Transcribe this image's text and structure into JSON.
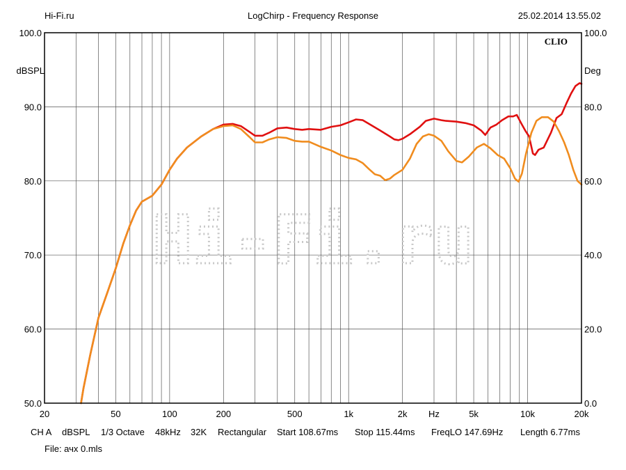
{
  "header": {
    "site": "Hi-Fi.ru",
    "title": "LogChirp - Frequency Response",
    "datetime": "25.02.2014 13.55.02"
  },
  "watermark": "Hi-Fi.ru",
  "chart_data": {
    "type": "line",
    "title": "LogChirp - Frequency Response",
    "brand": "CLIO",
    "xlabel": "Hz",
    "ylabel_left": "dBSPL",
    "ylabel_right": "Deg",
    "x_scale": "log",
    "xlim": [
      20,
      20000
    ],
    "ylim_left": [
      50,
      100
    ],
    "ylim_right": [
      0,
      100
    ],
    "grid": true,
    "x_ticks": [
      {
        "value": 20,
        "label": "20"
      },
      {
        "value": 50,
        "label": "50"
      },
      {
        "value": 100,
        "label": "100"
      },
      {
        "value": 200,
        "label": "200"
      },
      {
        "value": 500,
        "label": "500"
      },
      {
        "value": 1000,
        "label": "1k"
      },
      {
        "value": 2000,
        "label": "2k"
      },
      {
        "value": 3000,
        "label": "Hz"
      },
      {
        "value": 5000,
        "label": "5k"
      },
      {
        "value": 10000,
        "label": "10k"
      },
      {
        "value": 20000,
        "label": "20k"
      }
    ],
    "y_ticks_left": [
      {
        "value": 50,
        "label": "50.0"
      },
      {
        "value": 60,
        "label": "60.0"
      },
      {
        "value": 70,
        "label": "70.0"
      },
      {
        "value": 80,
        "label": "80.0"
      },
      {
        "value": 90,
        "label": "90.0"
      },
      {
        "value": 100,
        "label": "100.0"
      }
    ],
    "y_ticks_right": [
      {
        "value": 0,
        "label": "0.0"
      },
      {
        "value": 20,
        "label": "20.0"
      },
      {
        "value": 40,
        "label": "40.0"
      },
      {
        "value": 60,
        "label": "60.0"
      },
      {
        "value": 80,
        "label": "80.0"
      },
      {
        "value": 100,
        "label": "100.0"
      }
    ],
    "series": [
      {
        "color": "#e01010",
        "points": [
          [
            32,
            50
          ],
          [
            33,
            52
          ],
          [
            36,
            56.5
          ],
          [
            40,
            61.5
          ],
          [
            45,
            65
          ],
          [
            50,
            68.2
          ],
          [
            55,
            71.5
          ],
          [
            60,
            74
          ],
          [
            65,
            76
          ],
          [
            70,
            77.2
          ],
          [
            80,
            78
          ],
          [
            90,
            79.5
          ],
          [
            100,
            81.5
          ],
          [
            110,
            83
          ],
          [
            125,
            84.5
          ],
          [
            150,
            86
          ],
          [
            175,
            87
          ],
          [
            200,
            87.6
          ],
          [
            225,
            87.7
          ],
          [
            250,
            87.4
          ],
          [
            280,
            86.6
          ],
          [
            300,
            86.1
          ],
          [
            330,
            86.1
          ],
          [
            360,
            86.5
          ],
          [
            400,
            87.1
          ],
          [
            450,
            87.2
          ],
          [
            500,
            87
          ],
          [
            550,
            86.9
          ],
          [
            600,
            87
          ],
          [
            700,
            86.9
          ],
          [
            800,
            87.3
          ],
          [
            900,
            87.5
          ],
          [
            1000,
            87.9
          ],
          [
            1100,
            88.3
          ],
          [
            1200,
            88.2
          ],
          [
            1300,
            87.7
          ],
          [
            1500,
            86.8
          ],
          [
            1700,
            86
          ],
          [
            1800,
            85.6
          ],
          [
            1900,
            85.5
          ],
          [
            2000,
            85.7
          ],
          [
            2200,
            86.3
          ],
          [
            2500,
            87.3
          ],
          [
            2700,
            88.1
          ],
          [
            3000,
            88.4
          ],
          [
            3300,
            88.2
          ],
          [
            3500,
            88.1
          ],
          [
            4000,
            88
          ],
          [
            4500,
            87.8
          ],
          [
            5000,
            87.5
          ],
          [
            5500,
            86.8
          ],
          [
            5800,
            86.2
          ],
          [
            6200,
            87.2
          ],
          [
            6700,
            87.6
          ],
          [
            7200,
            88.2
          ],
          [
            7800,
            88.7
          ],
          [
            8300,
            88.7
          ],
          [
            8700,
            88.9
          ],
          [
            9200,
            87.8
          ],
          [
            9700,
            86.8
          ],
          [
            10200,
            86
          ],
          [
            10700,
            83.7
          ],
          [
            11000,
            83.5
          ],
          [
            11500,
            84.2
          ],
          [
            12300,
            84.5
          ],
          [
            13500,
            86.5
          ],
          [
            14500,
            88.5
          ],
          [
            15500,
            89
          ],
          [
            16500,
            90.5
          ],
          [
            17500,
            91.8
          ],
          [
            18500,
            92.8
          ],
          [
            19500,
            93.2
          ],
          [
            20000,
            93.1
          ]
        ]
      },
      {
        "color": "#f08c1e",
        "points": [
          [
            32,
            50
          ],
          [
            33,
            52
          ],
          [
            36,
            56.5
          ],
          [
            40,
            61.5
          ],
          [
            45,
            65
          ],
          [
            50,
            68.2
          ],
          [
            55,
            71.5
          ],
          [
            60,
            74
          ],
          [
            65,
            76
          ],
          [
            70,
            77.2
          ],
          [
            80,
            78
          ],
          [
            90,
            79.5
          ],
          [
            100,
            81.5
          ],
          [
            110,
            83
          ],
          [
            125,
            84.5
          ],
          [
            150,
            86
          ],
          [
            175,
            87
          ],
          [
            200,
            87.4
          ],
          [
            225,
            87.5
          ],
          [
            250,
            87
          ],
          [
            280,
            85.9
          ],
          [
            300,
            85.2
          ],
          [
            330,
            85.2
          ],
          [
            360,
            85.6
          ],
          [
            400,
            85.9
          ],
          [
            450,
            85.8
          ],
          [
            500,
            85.4
          ],
          [
            550,
            85.3
          ],
          [
            600,
            85.3
          ],
          [
            700,
            84.6
          ],
          [
            800,
            84.1
          ],
          [
            900,
            83.5
          ],
          [
            1000,
            83.1
          ],
          [
            1100,
            82.9
          ],
          [
            1200,
            82.4
          ],
          [
            1300,
            81.6
          ],
          [
            1400,
            80.9
          ],
          [
            1500,
            80.7
          ],
          [
            1600,
            80.1
          ],
          [
            1700,
            80.3
          ],
          [
            1800,
            80.8
          ],
          [
            2000,
            81.5
          ],
          [
            2200,
            83
          ],
          [
            2400,
            85
          ],
          [
            2600,
            86
          ],
          [
            2800,
            86.3
          ],
          [
            3000,
            86.1
          ],
          [
            3300,
            85.4
          ],
          [
            3600,
            84
          ],
          [
            4000,
            82.7
          ],
          [
            4300,
            82.5
          ],
          [
            4700,
            83.3
          ],
          [
            5200,
            84.5
          ],
          [
            5700,
            85
          ],
          [
            6200,
            84.4
          ],
          [
            6800,
            83.5
          ],
          [
            7400,
            83
          ],
          [
            8000,
            81.7
          ],
          [
            8500,
            80.3
          ],
          [
            8900,
            79.9
          ],
          [
            9300,
            81
          ],
          [
            9800,
            83.7
          ],
          [
            10500,
            86.5
          ],
          [
            11200,
            88.1
          ],
          [
            12000,
            88.6
          ],
          [
            13000,
            88.6
          ],
          [
            14000,
            88
          ],
          [
            15000,
            86.7
          ],
          [
            16000,
            85.2
          ],
          [
            17000,
            83.5
          ],
          [
            18000,
            81.5
          ],
          [
            19000,
            80
          ],
          [
            20000,
            79.5
          ]
        ]
      }
    ]
  },
  "footer": {
    "channel": "CH A",
    "unit": "dBSPL",
    "smoothing": "1/3 Octave",
    "rate": "48kHz",
    "size": "32K",
    "window": "Rectangular",
    "start": "Start 108.67ms",
    "stop": "Stop 115.44ms",
    "freqlo": "FreqLO 147.69Hz",
    "length": "Length 6.77ms",
    "file": "File: ачх 0.mls"
  }
}
